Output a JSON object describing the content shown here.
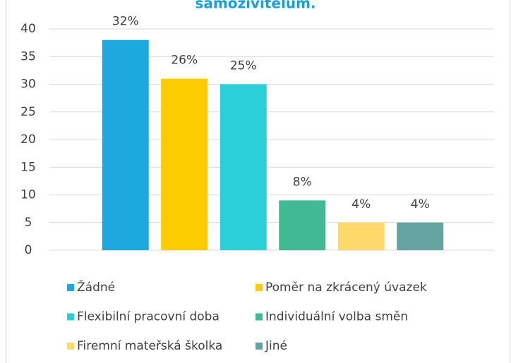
{
  "chart_data": {
    "type": "bar",
    "title": "samoživitelům.",
    "categories": [
      "Žádné",
      "Poměr na zkrácený úvazek",
      "Flexibilní pracovní doba",
      "Individuální volba směn",
      "Firemní mateřská školka",
      "Jiné"
    ],
    "values": [
      38,
      31,
      30,
      9,
      5,
      5
    ],
    "percent_labels": [
      "32%",
      "26%",
      "25%",
      "8%",
      "4%",
      "4%"
    ],
    "colors": [
      "#1da8e0",
      "#fccc00",
      "#2bcfd8",
      "#41b993",
      "#fdd96c",
      "#64a39f"
    ],
    "ylim": [
      0,
      40
    ],
    "yticks": [
      0,
      5,
      10,
      15,
      20,
      25,
      30,
      35,
      40
    ],
    "grid": true,
    "legend": "bottom"
  }
}
